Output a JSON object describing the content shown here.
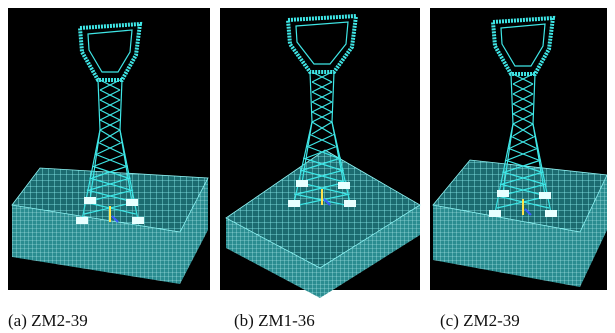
{
  "panels": [
    {
      "caption": "(a) ZM2-39"
    },
    {
      "caption": "(b) ZM1-36"
    },
    {
      "caption": "(c) ZM2-39"
    }
  ]
}
